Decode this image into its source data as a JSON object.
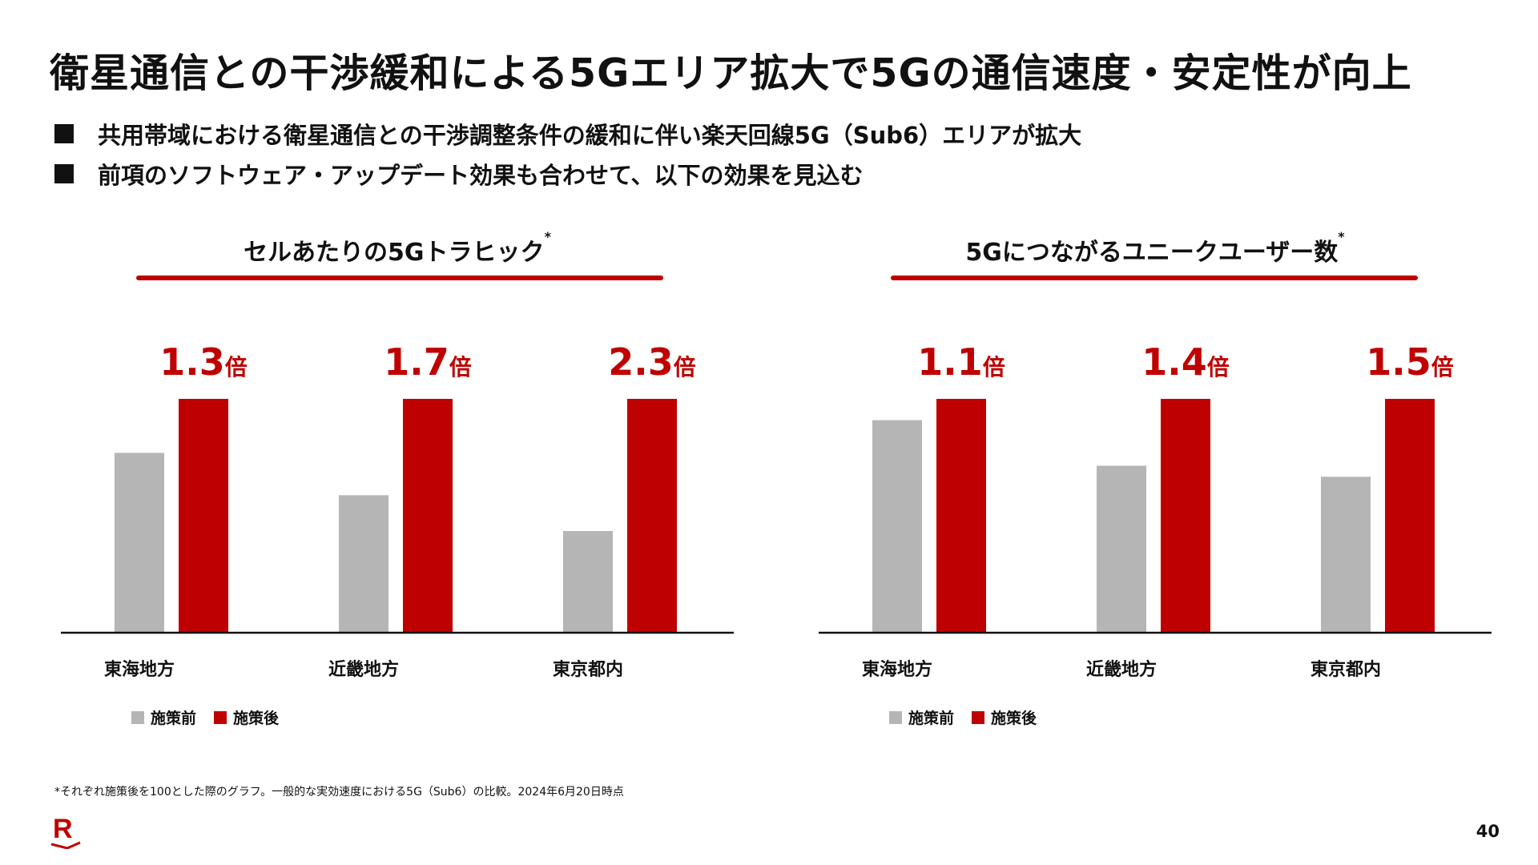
{
  "title": "衛星通信との干渉緩和による5Gエリア拡大で5Gの通信速度・安定性が向上",
  "bullets": [
    "共用帯域における衛星通信との干渉調整条件の緩和に伴い楽天回線5G（Sub6）エリアが拡大",
    "前項のソフトウェア・アップデート効果も合わせて、以下の効果を見込む"
  ],
  "colors": {
    "before": "#b5b5b5",
    "after": "#bf0000",
    "axis": "#111111",
    "text": "#111111"
  },
  "chart_data": [
    {
      "type": "bar",
      "title": "セルあたりの5Gトラヒック",
      "title_mark": "*",
      "categories": [
        "東海地方",
        "近畿地方",
        "東京都内"
      ],
      "series": [
        {
          "name": "施策前",
          "values": [
            76.9,
            58.8,
            43.5
          ]
        },
        {
          "name": "施策後",
          "values": [
            100,
            100,
            100
          ]
        }
      ],
      "data_labels": [
        {
          "num": "1.3",
          "unit": "倍"
        },
        {
          "num": "1.7",
          "unit": "倍"
        },
        {
          "num": "2.3",
          "unit": "倍"
        }
      ],
      "ylim": [
        0,
        100
      ],
      "xlabel": "",
      "ylabel": "",
      "grid": false,
      "legend": "bottom"
    },
    {
      "type": "bar",
      "title": "5Gにつながるユニークユーザー数",
      "title_mark": "*",
      "categories": [
        "東海地方",
        "近畿地方",
        "東京都内"
      ],
      "series": [
        {
          "name": "施策前",
          "values": [
            90.9,
            71.4,
            66.7
          ]
        },
        {
          "name": "施策後",
          "values": [
            100,
            100,
            100
          ]
        }
      ],
      "data_labels": [
        {
          "num": "1.1",
          "unit": "倍"
        },
        {
          "num": "1.4",
          "unit": "倍"
        },
        {
          "num": "1.5",
          "unit": "倍"
        }
      ],
      "ylim": [
        0,
        100
      ],
      "xlabel": "",
      "ylabel": "",
      "grid": false,
      "legend": "bottom"
    }
  ],
  "legend": {
    "before": "施策前",
    "after": "施策後"
  },
  "footnote": "*それぞれ施策後を100とした際のグラフ。一般的な実効速度における5G（Sub6）の比較。2024年6月20日時点",
  "logo": {
    "icon": "rakuten-r-logo",
    "letter": "R"
  },
  "page_number": "40"
}
